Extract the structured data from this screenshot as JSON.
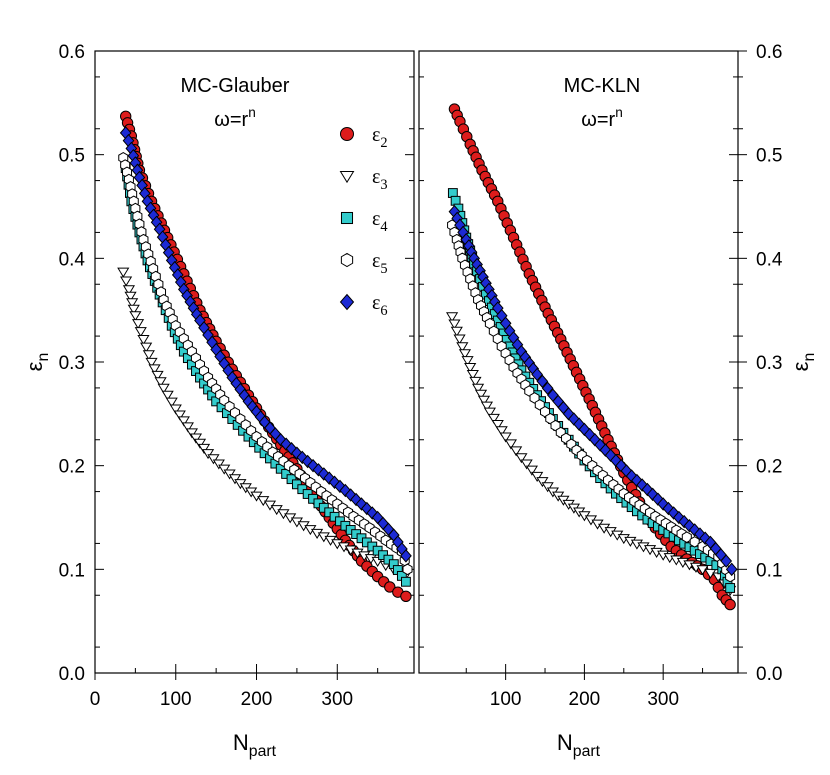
{
  "chart_data": [
    {
      "type": "scatter",
      "title": "MC-Glauber",
      "subtitle": {
        "base": "ω=r",
        "sup": "n"
      },
      "xlabel": {
        "base": "N",
        "sub": "part"
      },
      "ylabel": {
        "base": "ε",
        "sub": "n"
      },
      "xlim": [
        0,
        395
      ],
      "ylim": [
        0,
        0.6
      ],
      "xticks": [
        "0",
        "100",
        "200",
        "300"
      ],
      "yticks": [
        "0.0",
        "0.1",
        "0.2",
        "0.3",
        "0.4",
        "0.5",
        "0.6"
      ],
      "y_axis_side": "left",
      "legend_position": "top-right",
      "series": [
        {
          "name": {
            "base": "ε",
            "sub": "2"
          },
          "marker": "circle",
          "color": "#dd1c1c",
          "points": [
            [
              38,
              0.537
            ],
            [
              45,
              0.518
            ],
            [
              55,
              0.485
            ],
            [
              70,
              0.455
            ],
            [
              90,
              0.42
            ],
            [
              110,
              0.385
            ],
            [
              130,
              0.35
            ],
            [
              150,
              0.32
            ],
            [
              170,
              0.293
            ],
            [
              190,
              0.268
            ],
            [
              210,
              0.243
            ],
            [
              230,
              0.22
            ],
            [
              250,
              0.197
            ],
            [
              270,
              0.172
            ],
            [
              290,
              0.15
            ],
            [
              310,
              0.128
            ],
            [
              330,
              0.108
            ],
            [
              350,
              0.093
            ],
            [
              365,
              0.083
            ],
            [
              375,
              0.078
            ],
            [
              385,
              0.074
            ]
          ]
        },
        {
          "name": {
            "base": "ε",
            "sub": "3"
          },
          "marker": "triangle-down",
          "color": "#ffffff",
          "points": [
            [
              35,
              0.387
            ],
            [
              42,
              0.37
            ],
            [
              50,
              0.345
            ],
            [
              60,
              0.322
            ],
            [
              70,
              0.3
            ],
            [
              85,
              0.275
            ],
            [
              100,
              0.255
            ],
            [
              120,
              0.232
            ],
            [
              140,
              0.212
            ],
            [
              160,
              0.197
            ],
            [
              180,
              0.183
            ],
            [
              200,
              0.171
            ],
            [
              225,
              0.158
            ],
            [
              250,
              0.146
            ],
            [
              275,
              0.135
            ],
            [
              300,
              0.125
            ],
            [
              325,
              0.116
            ],
            [
              350,
              0.108
            ],
            [
              370,
              0.1
            ],
            [
              385,
              0.095
            ]
          ]
        },
        {
          "name": {
            "base": "ε",
            "sub": "4"
          },
          "marker": "square",
          "color": "#33cccc",
          "points": [
            [
              38,
              0.487
            ],
            [
              45,
              0.455
            ],
            [
              55,
              0.425
            ],
            [
              65,
              0.398
            ],
            [
              80,
              0.365
            ],
            [
              95,
              0.335
            ],
            [
              110,
              0.31
            ],
            [
              130,
              0.285
            ],
            [
              150,
              0.262
            ],
            [
              170,
              0.245
            ],
            [
              190,
              0.228
            ],
            [
              210,
              0.212
            ],
            [
              230,
              0.197
            ],
            [
              250,
              0.182
            ],
            [
              270,
              0.168
            ],
            [
              290,
              0.155
            ],
            [
              310,
              0.142
            ],
            [
              330,
              0.13
            ],
            [
              350,
              0.118
            ],
            [
              370,
              0.105
            ],
            [
              385,
              0.088
            ]
          ]
        },
        {
          "name": {
            "base": "ε",
            "sub": "5"
          },
          "marker": "hexagon",
          "color": "#ffffff",
          "points": [
            [
              35,
              0.497
            ],
            [
              42,
              0.476
            ],
            [
              50,
              0.448
            ],
            [
              60,
              0.418
            ],
            [
              72,
              0.39
            ],
            [
              85,
              0.36
            ],
            [
              100,
              0.335
            ],
            [
              120,
              0.31
            ],
            [
              140,
              0.285
            ],
            [
              160,
              0.263
            ],
            [
              180,
              0.245
            ],
            [
              200,
              0.228
            ],
            [
              220,
              0.213
            ],
            [
              240,
              0.2
            ],
            [
              260,
              0.188
            ],
            [
              280,
              0.175
            ],
            [
              300,
              0.163
            ],
            [
              320,
              0.151
            ],
            [
              340,
              0.14
            ],
            [
              360,
              0.128
            ],
            [
              380,
              0.117
            ],
            [
              387,
              0.1
            ]
          ]
        },
        {
          "name": {
            "base": "ε",
            "sub": "6"
          },
          "marker": "diamond",
          "color": "#1c2ad4",
          "points": [
            [
              38,
              0.521
            ],
            [
              45,
              0.506
            ],
            [
              55,
              0.478
            ],
            [
              65,
              0.455
            ],
            [
              80,
              0.428
            ],
            [
              95,
              0.398
            ],
            [
              110,
              0.37
            ],
            [
              130,
              0.34
            ],
            [
              150,
              0.312
            ],
            [
              170,
              0.285
            ],
            [
              190,
              0.262
            ],
            [
              210,
              0.242
            ],
            [
              230,
              0.225
            ],
            [
              250,
              0.212
            ],
            [
              270,
              0.2
            ],
            [
              290,
              0.188
            ],
            [
              310,
              0.176
            ],
            [
              330,
              0.163
            ],
            [
              350,
              0.15
            ],
            [
              370,
              0.133
            ],
            [
              385,
              0.113
            ]
          ]
        }
      ]
    },
    {
      "type": "scatter",
      "title": "MC-KLN",
      "subtitle": {
        "base": "ω=r",
        "sup": "n"
      },
      "xlabel": {
        "base": "N",
        "sub": "part"
      },
      "ylabel": {
        "base": "ε",
        "sub": "n"
      },
      "xlim": [
        -10,
        395
      ],
      "ylim": [
        0,
        0.6
      ],
      "xticks": [
        "100",
        "200",
        "300"
      ],
      "yticks": [
        "0.0",
        "0.1",
        "0.2",
        "0.3",
        "0.4",
        "0.5",
        "0.6"
      ],
      "y_axis_side": "right",
      "series": [
        {
          "name": {
            "base": "ε",
            "sub": "2"
          },
          "marker": "circle",
          "color": "#dd1c1c",
          "points": [
            [
              35,
              0.544
            ],
            [
              42,
              0.532
            ],
            [
              55,
              0.51
            ],
            [
              70,
              0.485
            ],
            [
              90,
              0.455
            ],
            [
              110,
              0.42
            ],
            [
              130,
              0.385
            ],
            [
              150,
              0.353
            ],
            [
              170,
              0.322
            ],
            [
              190,
              0.29
            ],
            [
              210,
              0.258
            ],
            [
              230,
              0.225
            ],
            [
              250,
              0.193
            ],
            [
              270,
              0.165
            ],
            [
              290,
              0.14
            ],
            [
              310,
              0.122
            ],
            [
              330,
              0.11
            ],
            [
              350,
              0.1
            ],
            [
              365,
              0.09
            ],
            [
              375,
              0.075
            ],
            [
              385,
              0.066
            ]
          ]
        },
        {
          "name": {
            "base": "ε",
            "sub": "3"
          },
          "marker": "triangle-down",
          "color": "#ffffff",
          "points": [
            [
              32,
              0.344
            ],
            [
              38,
              0.33
            ],
            [
              45,
              0.315
            ],
            [
              55,
              0.295
            ],
            [
              65,
              0.275
            ],
            [
              80,
              0.252
            ],
            [
              100,
              0.228
            ],
            [
              120,
              0.208
            ],
            [
              140,
              0.19
            ],
            [
              160,
              0.175
            ],
            [
              180,
              0.163
            ],
            [
              200,
              0.152
            ],
            [
              225,
              0.14
            ],
            [
              250,
              0.13
            ],
            [
              275,
              0.122
            ],
            [
              300,
              0.114
            ],
            [
              325,
              0.107
            ],
            [
              350,
              0.1
            ],
            [
              370,
              0.093
            ],
            [
              385,
              0.08
            ]
          ]
        },
        {
          "name": {
            "base": "ε",
            "sub": "4"
          },
          "marker": "square",
          "color": "#33cccc",
          "points": [
            [
              33,
              0.463
            ],
            [
              40,
              0.448
            ],
            [
              50,
              0.42
            ],
            [
              60,
              0.395
            ],
            [
              75,
              0.365
            ],
            [
              90,
              0.34
            ],
            [
              105,
              0.315
            ],
            [
              120,
              0.292
            ],
            [
              140,
              0.268
            ],
            [
              160,
              0.245
            ],
            [
              180,
              0.225
            ],
            [
              200,
              0.205
            ],
            [
              220,
              0.188
            ],
            [
              240,
              0.173
            ],
            [
              260,
              0.16
            ],
            [
              280,
              0.148
            ],
            [
              300,
              0.138
            ],
            [
              320,
              0.128
            ],
            [
              340,
              0.118
            ],
            [
              360,
              0.108
            ],
            [
              375,
              0.1
            ],
            [
              385,
              0.082
            ]
          ]
        },
        {
          "name": {
            "base": "ε",
            "sub": "5"
          },
          "marker": "hexagon",
          "color": "#ffffff",
          "points": [
            [
              32,
              0.432
            ],
            [
              38,
              0.418
            ],
            [
              45,
              0.4
            ],
            [
              55,
              0.38
            ],
            [
              65,
              0.36
            ],
            [
              80,
              0.337
            ],
            [
              95,
              0.315
            ],
            [
              110,
              0.295
            ],
            [
              130,
              0.272
            ],
            [
              150,
              0.252
            ],
            [
              170,
              0.232
            ],
            [
              190,
              0.215
            ],
            [
              210,
              0.2
            ],
            [
              230,
              0.186
            ],
            [
              250,
              0.173
            ],
            [
              270,
              0.162
            ],
            [
              290,
              0.151
            ],
            [
              310,
              0.141
            ],
            [
              330,
              0.131
            ],
            [
              350,
              0.122
            ],
            [
              370,
              0.112
            ],
            [
              385,
              0.093
            ]
          ]
        },
        {
          "name": {
            "base": "ε",
            "sub": "6"
          },
          "marker": "diamond",
          "color": "#1c2ad4",
          "points": [
            [
              35,
              0.445
            ],
            [
              42,
              0.432
            ],
            [
              50,
              0.418
            ],
            [
              60,
              0.4
            ],
            [
              75,
              0.376
            ],
            [
              90,
              0.352
            ],
            [
              105,
              0.33
            ],
            [
              120,
              0.31
            ],
            [
              140,
              0.288
            ],
            [
              160,
              0.268
            ],
            [
              180,
              0.25
            ],
            [
              200,
              0.235
            ],
            [
              220,
              0.22
            ],
            [
              240,
              0.205
            ],
            [
              260,
              0.19
            ],
            [
              280,
              0.177
            ],
            [
              300,
              0.163
            ],
            [
              320,
              0.15
            ],
            [
              340,
              0.138
            ],
            [
              360,
              0.126
            ],
            [
              380,
              0.108
            ],
            [
              387,
              0.1
            ]
          ]
        }
      ]
    }
  ]
}
